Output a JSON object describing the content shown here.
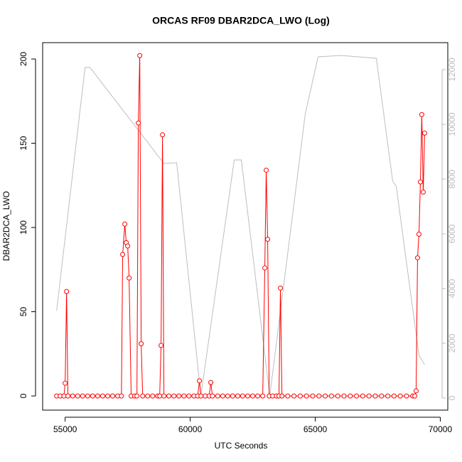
{
  "chart_data": {
    "type": "line",
    "title": "ORCAS RF09 DBAR2DCA_LWO (Log)",
    "x_label": "UTC Seconds",
    "y_label": "DBAR2DCA_LWO",
    "xlim": [
      54100,
      70300
    ],
    "xticks": [
      55000,
      60000,
      65000,
      70000
    ],
    "ylim": [
      -8.4,
      209.7
    ],
    "yticks": [
      0,
      50,
      100,
      150,
      200
    ],
    "y2lim": [
      -442,
      12987
    ],
    "y2ticks": [
      0,
      2000,
      4000,
      6000,
      8000,
      10000,
      12000
    ],
    "series": [
      {
        "color": "#ff0000",
        "markers": true,
        "x": [
          54660,
          54800,
          54950,
          55000,
          55057,
          55110,
          55300,
          55500,
          55700,
          55900,
          56100,
          56300,
          56500,
          56700,
          56900,
          57100,
          57250,
          57300,
          57386,
          57443,
          57500,
          57557,
          57640,
          57780,
          57870,
          57926,
          57983,
          58040,
          58100,
          58300,
          58500,
          58700,
          58780,
          58835,
          58892,
          58950,
          59150,
          59350,
          59550,
          59750,
          59950,
          60150,
          60300,
          60369,
          60430,
          60600,
          60760,
          60824,
          60890,
          61100,
          61300,
          61500,
          61700,
          61900,
          62100,
          62300,
          62500,
          62700,
          62900,
          62983,
          63040,
          63097,
          63160,
          63300,
          63450,
          63550,
          63608,
          63670,
          63900,
          64150,
          64400,
          64650,
          64900,
          65150,
          65400,
          65650,
          65900,
          66150,
          66400,
          66650,
          66900,
          67150,
          67400,
          67650,
          67900,
          68150,
          68400,
          68650,
          68900,
          68980,
          69034,
          69091,
          69148,
          69205,
          69261,
          69318,
          69375
        ],
        "values": [
          0,
          0,
          0,
          7.6,
          62,
          0,
          0,
          0,
          0,
          0,
          0,
          0,
          0,
          0,
          0,
          0,
          0,
          84,
          102,
          91,
          89,
          70,
          0,
          0,
          0,
          162,
          202,
          31,
          0,
          0,
          0,
          0,
          0,
          30,
          155,
          0,
          0,
          0,
          0,
          0,
          0,
          0,
          0,
          9,
          0,
          0,
          0,
          8,
          0,
          0,
          0,
          0,
          0,
          0,
          0,
          0,
          0,
          0,
          0,
          76,
          134,
          93,
          0,
          0,
          0,
          0,
          64,
          0,
          0,
          0,
          0,
          0,
          0,
          0,
          0,
          0,
          0,
          0,
          0,
          0,
          0,
          0,
          0,
          0,
          0,
          0,
          0,
          0,
          0,
          0,
          3,
          82,
          96,
          127,
          167,
          121,
          156
        ]
      },
      {
        "color": "#bebebe",
        "axis": "y2",
        "markers": false,
        "x": [
          54660,
          55795,
          55994,
          58950,
          59460,
          60426,
          61761,
          62045,
          63182,
          64602,
          65114,
          66023,
          67443,
          68097,
          68239,
          69148,
          69375
        ],
        "values": [
          3195,
          12078,
          12078,
          8571,
          8597,
          78,
          8701,
          8701,
          78,
          10390,
          12468,
          12519,
          12415,
          7922,
          7740,
          1558,
          1221
        ]
      }
    ]
  }
}
